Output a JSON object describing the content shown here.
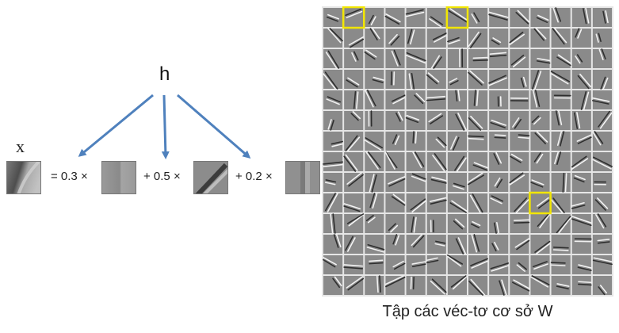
{
  "labels": {
    "input": "x",
    "code": "h"
  },
  "equation": {
    "terms": [
      {
        "text": "= 0.3 ×"
      },
      {
        "text": "+ 0.5 ×"
      },
      {
        "text": "+ 0.2 ×"
      }
    ],
    "coefficients": [
      0.3,
      0.5,
      0.2
    ]
  },
  "basis": {
    "caption": "Tập các véc-tơ cơ sở W",
    "rows": 14,
    "cols": 14,
    "highlight_color": "#f2e600",
    "highlighted": [
      {
        "row": 0,
        "col": 1
      },
      {
        "row": 0,
        "col": 6
      },
      {
        "row": 9,
        "col": 10
      }
    ]
  },
  "colors": {
    "arrow": "#4f81bd",
    "tile_bg": "#8a8a8a",
    "grid_line": "#e6e6e6"
  }
}
